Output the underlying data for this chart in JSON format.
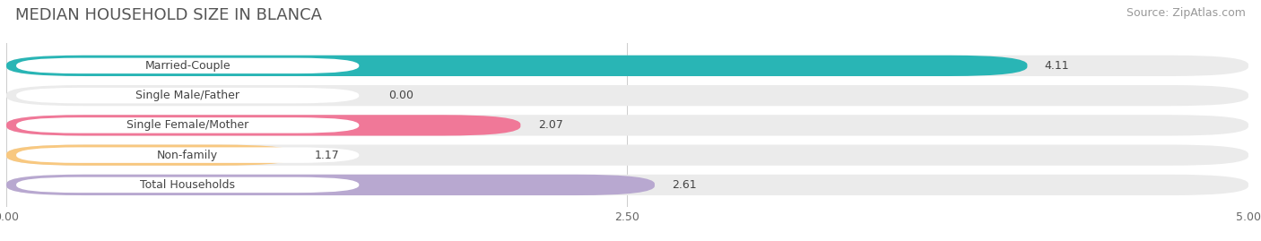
{
  "title": "MEDIAN HOUSEHOLD SIZE IN BLANCA",
  "source": "Source: ZipAtlas.com",
  "categories": [
    "Married-Couple",
    "Single Male/Father",
    "Single Female/Mother",
    "Non-family",
    "Total Households"
  ],
  "values": [
    4.11,
    0.0,
    2.07,
    1.17,
    2.61
  ],
  "bar_colors": [
    "#29b5b5",
    "#a0b4e0",
    "#f07898",
    "#f8c880",
    "#b8a8d0"
  ],
  "xlim": [
    0,
    5.0
  ],
  "xtick_labels": [
    "0.00",
    "2.50",
    "5.00"
  ],
  "xtick_vals": [
    0.0,
    2.5,
    5.0
  ],
  "background_color": "#ffffff",
  "bar_bg_color": "#ebebeb",
  "title_fontsize": 13,
  "source_fontsize": 9,
  "label_fontsize": 9,
  "value_fontsize": 9
}
